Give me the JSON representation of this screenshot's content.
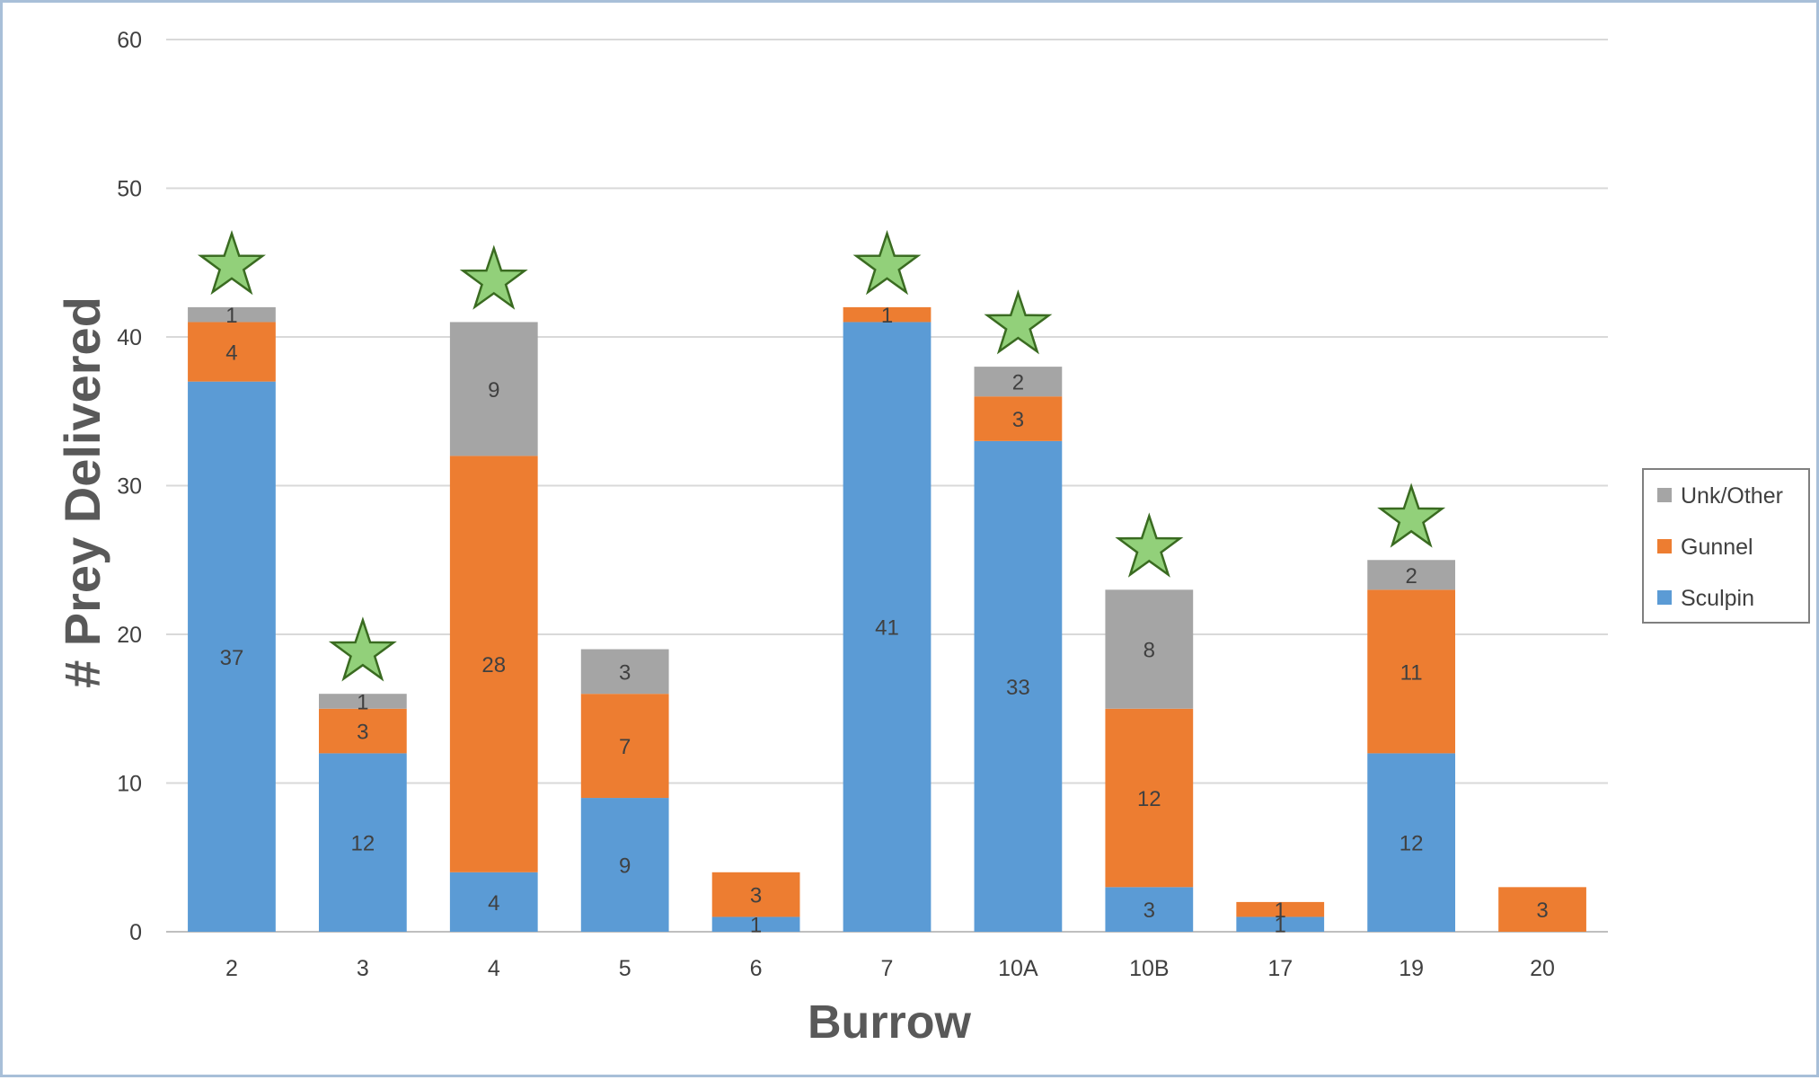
{
  "chart_data": {
    "type": "bar",
    "stacked": true,
    "categories": [
      "2",
      "3",
      "4",
      "5",
      "6",
      "7",
      "10A",
      "10B",
      "17",
      "19",
      "20"
    ],
    "series": [
      {
        "name": "Sculpin",
        "color": "#5b9bd5",
        "values": [
          37,
          12,
          4,
          9,
          1,
          41,
          33,
          3,
          1,
          12,
          0
        ]
      },
      {
        "name": "Gunnel",
        "color": "#ed7d31",
        "values": [
          4,
          3,
          28,
          7,
          3,
          1,
          3,
          12,
          1,
          11,
          3
        ]
      },
      {
        "name": "Unk/Other",
        "color": "#a5a5a5",
        "values": [
          1,
          1,
          9,
          3,
          0,
          0,
          2,
          8,
          0,
          2,
          0
        ]
      }
    ],
    "starred_categories": [
      "2",
      "3",
      "4",
      "7",
      "10A",
      "10B",
      "19"
    ],
    "star_color": "#92d07a",
    "xlabel": "Burrow",
    "ylabel": "# Prey Delivered",
    "ylim": [
      0,
      60
    ],
    "yticks": [
      0,
      10,
      20,
      30,
      40,
      50,
      60
    ],
    "grid": true,
    "legend_position": "right",
    "legend_order": [
      "Unk/Other",
      "Gunnel",
      "Sculpin"
    ]
  }
}
